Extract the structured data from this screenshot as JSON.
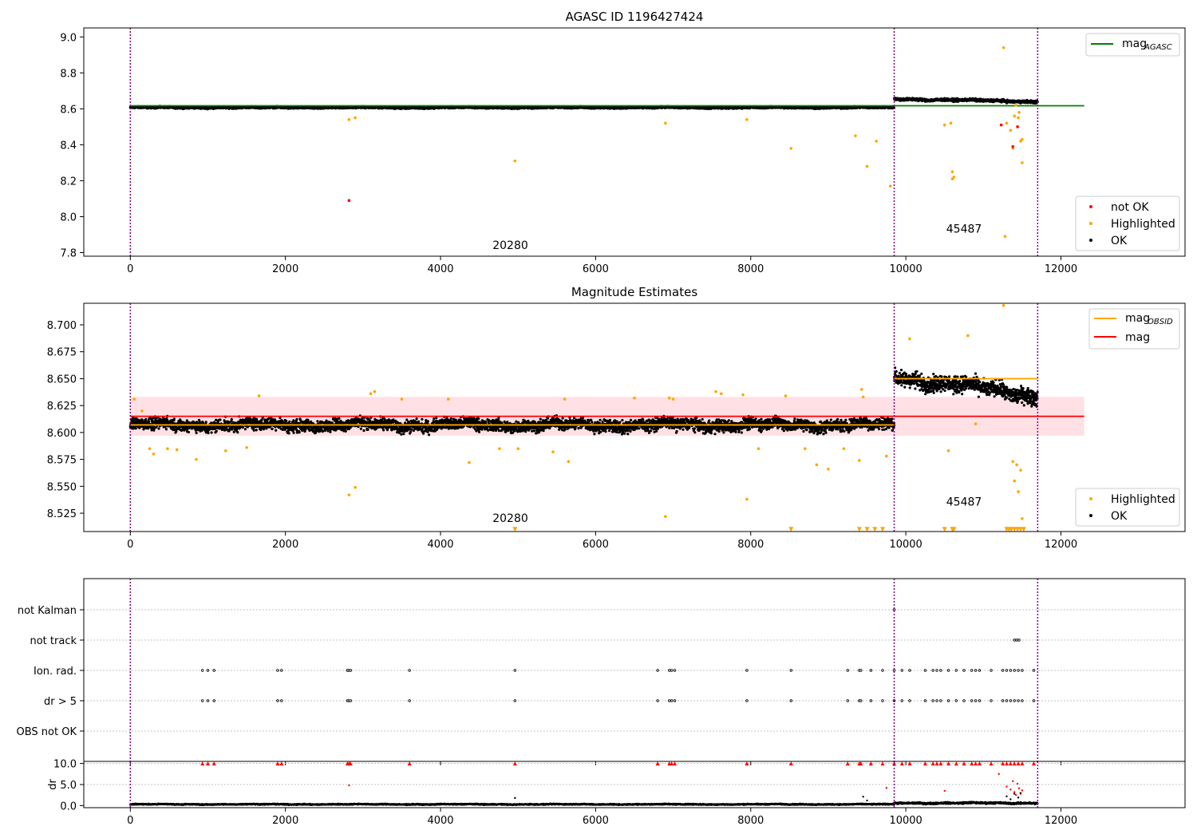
{
  "colors": {
    "ok": "#000000",
    "highlighted": "#ffa500",
    "not_ok": "#ff0000",
    "mag_agasc": "#008000",
    "mag_obsid": "#ffa500",
    "mag": "#ff0000",
    "band": "#ffd6dc",
    "obsid_boundary": "#800080",
    "grid": "#b0b0b0"
  },
  "chart_data": [
    {
      "type": "scatter",
      "title": "AGASC ID 1196427424",
      "xlim": [
        -600,
        13600
      ],
      "ylim": [
        7.78,
        9.05
      ],
      "xticks": [
        0,
        2000,
        4000,
        6000,
        8000,
        10000,
        12000
      ],
      "yticks": [
        7.8,
        8.0,
        8.2,
        8.4,
        8.6,
        8.8,
        9.0
      ],
      "obsid_boundaries": [
        0,
        9850,
        11700
      ],
      "obsid_labels": [
        {
          "text": "20280",
          "x": 4900,
          "y": 7.82
        },
        {
          "text": "45487",
          "x": 10750,
          "y": 7.91
        }
      ],
      "lines": [
        {
          "name": "AGASC",
          "y": 8.617,
          "x": [
            0,
            12300
          ],
          "color": "green"
        }
      ],
      "legend_top": {
        "position": "top-right",
        "entries": [
          {
            "label": "mag",
            "sub": "AGASC"
          }
        ]
      },
      "legend_bottom": {
        "position": "lower-right",
        "entries": [
          "not OK",
          "Highlighted",
          "OK"
        ]
      },
      "series": [
        {
          "name": "OK",
          "segments": [
            {
              "x": [
                0,
                9850
              ],
              "center": 8.607,
              "spread": 0.008
            },
            {
              "x": [
                9850,
                11700
              ],
              "center": 8.655,
              "spread": 0.012,
              "trend": -0.015
            }
          ]
        },
        {
          "name": "Highlighted",
          "points": [
            [
              2820,
              8.54
            ],
            [
              2900,
              8.55
            ],
            [
              4960,
              8.31
            ],
            [
              6900,
              8.52
            ],
            [
              7950,
              8.54
            ],
            [
              8520,
              8.38
            ],
            [
              9350,
              8.45
            ],
            [
              9500,
              8.28
            ],
            [
              9620,
              8.42
            ],
            [
              9800,
              8.17
            ],
            [
              10600,
              8.25
            ],
            [
              10620,
              8.22
            ],
            [
              10600,
              8.21
            ],
            [
              10580,
              8.52
            ],
            [
              10500,
              8.51
            ],
            [
              11300,
              8.52
            ],
            [
              11350,
              8.48
            ],
            [
              11400,
              8.56
            ],
            [
              11450,
              8.55
            ],
            [
              11480,
              8.42
            ],
            [
              11500,
              8.3
            ],
            [
              11380,
              8.38
            ],
            [
              11260,
              8.94
            ],
            [
              11280,
              7.89
            ],
            [
              11420,
              8.62
            ],
            [
              11460,
              8.58
            ],
            [
              11500,
              8.43
            ]
          ]
        },
        {
          "name": "not OK",
          "points": [
            [
              2820,
              8.09
            ],
            [
              11230,
              8.51
            ],
            [
              11380,
              8.39
            ],
            [
              11440,
              8.5
            ]
          ]
        }
      ]
    },
    {
      "type": "scatter",
      "title": "Magnitude Estimates",
      "xlim": [
        -600,
        13600
      ],
      "ylim": [
        8.508,
        8.72
      ],
      "xticks": [
        0,
        2000,
        4000,
        6000,
        8000,
        10000,
        12000
      ],
      "yticks": [
        8.525,
        8.55,
        8.575,
        8.6,
        8.625,
        8.65,
        8.675,
        8.7
      ],
      "ytick_labels": [
        "8.525",
        "8.550",
        "8.575",
        "8.600",
        "8.625",
        "8.650",
        "8.675",
        "8.700"
      ],
      "obsid_boundaries": [
        0,
        9850,
        11700
      ],
      "obsid_labels": [
        {
          "text": "20280",
          "x": 4900,
          "y": 8.517
        },
        {
          "text": "45487",
          "x": 10750,
          "y": 8.532
        }
      ],
      "band": {
        "x": [
          0,
          12300
        ],
        "y": [
          8.597,
          8.633
        ]
      },
      "lines": [
        {
          "name": "mag",
          "y": 8.615,
          "x": [
            0,
            12300
          ],
          "color": "red"
        },
        {
          "name": "OBSID",
          "y": 8.607,
          "x": [
            0,
            9850
          ],
          "color": "orange"
        },
        {
          "name": "OBSID",
          "y": 8.65,
          "x": [
            9850,
            11700
          ],
          "color": "orange"
        }
      ],
      "legend_top": {
        "position": "top-right",
        "entries": [
          {
            "label": "mag",
            "sub": "OBSID"
          },
          {
            "label": "mag"
          }
        ]
      },
      "legend_bottom": {
        "position": "lower-right",
        "entries": [
          "Highlighted",
          "OK"
        ]
      },
      "series": [
        {
          "name": "OK",
          "segments": [
            {
              "x": [
                0,
                9850
              ],
              "center": 8.607,
              "spread": 0.009
            },
            {
              "x": [
                9850,
                11700
              ],
              "center": 8.652,
              "spread": 0.012,
              "trend": -0.018
            }
          ]
        },
        {
          "name": "Highlighted",
          "points": [
            [
              50,
              8.631
            ],
            [
              150,
              8.62
            ],
            [
              250,
              8.585
            ],
            [
              300,
              8.58
            ],
            [
              480,
              8.585
            ],
            [
              600,
              8.584
            ],
            [
              850,
              8.575
            ],
            [
              1230,
              8.583
            ],
            [
              1500,
              8.586
            ],
            [
              1660,
              8.634
            ],
            [
              2820,
              8.542
            ],
            [
              2900,
              8.549
            ],
            [
              3100,
              8.636
            ],
            [
              3150,
              8.638
            ],
            [
              3500,
              8.631
            ],
            [
              4100,
              8.631
            ],
            [
              4370,
              8.572
            ],
            [
              4760,
              8.585
            ],
            [
              5000,
              8.585
            ],
            [
              5450,
              8.582
            ],
            [
              5600,
              8.631
            ],
            [
              5650,
              8.573
            ],
            [
              6500,
              8.632
            ],
            [
              6900,
              8.522
            ],
            [
              6950,
              8.632
            ],
            [
              7000,
              8.631
            ],
            [
              7550,
              8.638
            ],
            [
              7620,
              8.636
            ],
            [
              7900,
              8.635
            ],
            [
              7950,
              8.538
            ],
            [
              8100,
              8.585
            ],
            [
              8450,
              8.634
            ],
            [
              8700,
              8.585
            ],
            [
              8850,
              8.57
            ],
            [
              9000,
              8.566
            ],
            [
              9200,
              8.585
            ],
            [
              9400,
              8.574
            ],
            [
              9430,
              8.64
            ],
            [
              9450,
              8.633
            ],
            [
              9750,
              8.578
            ],
            [
              10050,
              8.687
            ],
            [
              10550,
              8.583
            ],
            [
              10800,
              8.69
            ],
            [
              10900,
              8.608
            ],
            [
              11260,
              8.718
            ],
            [
              11380,
              8.573
            ],
            [
              11400,
              8.555
            ],
            [
              11430,
              8.57
            ],
            [
              11450,
              8.545
            ],
            [
              11480,
              8.565
            ],
            [
              11500,
              8.52
            ]
          ]
        },
        {
          "name": "Highlighted",
          "marker": "triangle-down",
          "points": [
            [
              4960,
              8.51
            ],
            [
              8520,
              8.51
            ],
            [
              9400,
              8.51
            ],
            [
              9500,
              8.51
            ],
            [
              9600,
              8.51
            ],
            [
              9700,
              8.51
            ],
            [
              10500,
              8.51
            ],
            [
              10600,
              8.51
            ],
            [
              10620,
              8.51
            ],
            [
              11300,
              8.51
            ],
            [
              11330,
              8.51
            ],
            [
              11360,
              8.51
            ],
            [
              11400,
              8.51
            ],
            [
              11440,
              8.51
            ],
            [
              11480,
              8.51
            ],
            [
              11520,
              8.51
            ]
          ]
        }
      ]
    },
    {
      "type": "scatter",
      "title": "",
      "xlim": [
        -600,
        13600
      ],
      "xticks": [
        0,
        2000,
        4000,
        6000,
        8000,
        10000,
        12000
      ],
      "obsid_boundaries": [
        0,
        9850,
        11700
      ],
      "flags": [
        "OBS not OK",
        "dr > 5",
        "Ion. rad.",
        "not track",
        "not Kalman"
      ],
      "flag_points": [
        {
          "flag": "dr > 5",
          "x": [
            930,
            1000,
            1080,
            1900,
            1950,
            2800,
            2820,
            2840,
            3600,
            4960,
            6800,
            6950,
            6980,
            7020,
            7950,
            8520,
            9250,
            9400,
            9420,
            9550,
            9700,
            9850,
            9950,
            10050,
            10250,
            10350,
            10400,
            10450,
            10550,
            10650,
            10750,
            10850,
            10900,
            10950,
            11100,
            11250,
            11300,
            11350,
            11400,
            11450,
            11500,
            11650
          ]
        },
        {
          "flag": "Ion. rad.",
          "x": [
            930,
            1000,
            1080,
            1900,
            1950,
            2800,
            2820,
            2840,
            3600,
            4960,
            6800,
            6950,
            6980,
            7020,
            7950,
            8520,
            9250,
            9400,
            9420,
            9550,
            9700,
            9850,
            9950,
            10050,
            10250,
            10350,
            10400,
            10450,
            10550,
            10650,
            10750,
            10850,
            10900,
            10950,
            11100,
            11250,
            11300,
            11350,
            11400,
            11450,
            11500,
            11650
          ]
        },
        {
          "flag": "not track",
          "x": [
            11400,
            11430,
            11460
          ]
        },
        {
          "flag": "not Kalman",
          "x": [
            9850
          ]
        }
      ]
    },
    {
      "type": "scatter",
      "ylabel": "dr",
      "xlim": [
        -600,
        13600
      ],
      "ylim": [
        -0.5,
        10.5
      ],
      "xticks": [
        0,
        2000,
        4000,
        6000,
        8000,
        10000,
        12000
      ],
      "yticks": [
        0,
        5,
        10
      ],
      "obsid_boundaries": [
        0,
        9850,
        11700
      ],
      "series": [
        {
          "name": "OK",
          "segments": [
            {
              "x": [
                0,
                9850
              ],
              "center": 0.3,
              "spread": 0.2
            },
            {
              "x": [
                9850,
                11700
              ],
              "center": 0.6,
              "spread": 0.35
            }
          ]
        },
        {
          "name": "not OK",
          "marker": "triangle-up",
          "points": [
            [
              930,
              10
            ],
            [
              1000,
              10
            ],
            [
              1080,
              10
            ],
            [
              1900,
              10
            ],
            [
              1950,
              10
            ],
            [
              2800,
              10
            ],
            [
              2820,
              10
            ],
            [
              2840,
              10
            ],
            [
              3600,
              10
            ],
            [
              4960,
              10
            ],
            [
              6800,
              10
            ],
            [
              6950,
              10
            ],
            [
              6980,
              10
            ],
            [
              7020,
              10
            ],
            [
              7950,
              10
            ],
            [
              8520,
              10
            ],
            [
              9250,
              10
            ],
            [
              9400,
              10
            ],
            [
              9420,
              10
            ],
            [
              9550,
              10
            ],
            [
              9700,
              10
            ],
            [
              9850,
              10
            ],
            [
              9950,
              10
            ],
            [
              10050,
              10
            ],
            [
              10250,
              10
            ],
            [
              10350,
              10
            ],
            [
              10400,
              10
            ],
            [
              10450,
              10
            ],
            [
              10550,
              10
            ],
            [
              10650,
              10
            ],
            [
              10750,
              10
            ],
            [
              10850,
              10
            ],
            [
              10900,
              10
            ],
            [
              10950,
              10
            ],
            [
              11100,
              10
            ],
            [
              11250,
              10
            ],
            [
              11300,
              10
            ],
            [
              11350,
              10
            ],
            [
              11400,
              10
            ],
            [
              11450,
              10
            ],
            [
              11500,
              10
            ],
            [
              11650,
              10
            ]
          ]
        },
        {
          "name": "not OK",
          "points": [
            [
              2820,
              4.8
            ],
            [
              9750,
              4.2
            ],
            [
              10500,
              3.5
            ],
            [
              11200,
              7.5
            ],
            [
              11300,
              4.5
            ],
            [
              11350,
              3.8
            ],
            [
              11380,
              5.8
            ],
            [
              11400,
              3.2
            ],
            [
              11420,
              2.5
            ],
            [
              11440,
              5.2
            ],
            [
              11460,
              4.1
            ],
            [
              11480,
              2.8
            ],
            [
              11500,
              3.6
            ]
          ]
        },
        {
          "name": "OK",
          "points": [
            [
              4960,
              1.8
            ],
            [
              9450,
              2.1
            ],
            [
              9500,
              1.2
            ],
            [
              11300,
              2.2
            ],
            [
              11350,
              1.5
            ],
            [
              11400,
              2.8
            ],
            [
              11450,
              1.9
            ],
            [
              11480,
              3.0
            ]
          ]
        }
      ]
    }
  ]
}
